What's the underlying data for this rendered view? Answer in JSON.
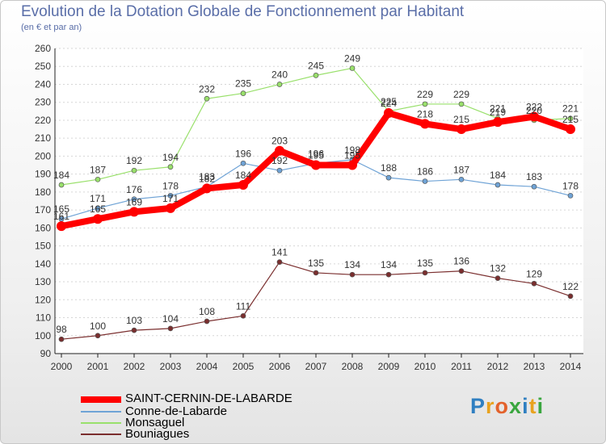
{
  "header": {
    "title": "Evolution de la Dotation Globale de Fonctionnement par Habitant",
    "subtitle": "(en € et par an)"
  },
  "chart_data": {
    "type": "line",
    "title": "Evolution de la Dotation Globale de Fonctionnement par Habitant",
    "subtitle": "(en € et par an)",
    "xlabel": "",
    "ylabel": "",
    "ylim": [
      90,
      260
    ],
    "y_ticks": [
      90,
      100,
      110,
      120,
      130,
      140,
      150,
      160,
      170,
      180,
      190,
      200,
      210,
      220,
      230,
      240,
      250,
      260
    ],
    "grid": "horizontal",
    "categories": [
      "2000",
      "2001",
      "2002",
      "2003",
      "2004",
      "2005",
      "2006",
      "2007",
      "2008",
      "2009",
      "2010",
      "2011",
      "2012",
      "2013",
      "2014"
    ],
    "series": [
      {
        "name": "SAINT-CERNIN-DE-LABARDE",
        "color": "#ff0000",
        "values": [
          161,
          165,
          169,
          171,
          182,
          184,
          203,
          195,
          195,
          224,
          218,
          215,
          219,
          222,
          215
        ]
      },
      {
        "name": "Conne-de-Labarde",
        "color": "#6fa3d6",
        "values": [
          165,
          171,
          176,
          178,
          183,
          196,
          192,
          196,
          198,
          188,
          186,
          187,
          184,
          183,
          178
        ]
      },
      {
        "name": "Monsaguel",
        "color": "#99e06b",
        "values": [
          184,
          187,
          192,
          194,
          232,
          235,
          240,
          245,
          249,
          225,
          229,
          229,
          221,
          220,
          221
        ]
      },
      {
        "name": "Bouniagues",
        "color": "#7a2e2e",
        "values": [
          98,
          100,
          103,
          104,
          108,
          111,
          141,
          135,
          134,
          134,
          135,
          136,
          132,
          129,
          122
        ]
      }
    ],
    "legend_position": "bottom-left"
  },
  "legend": [
    {
      "label": "SAINT-CERNIN-DE-LABARDE",
      "color": "#ff0000"
    },
    {
      "label": "Conne-de-Labarde",
      "color": "#6fa3d6"
    },
    {
      "label": "Monsaguel",
      "color": "#99e06b"
    },
    {
      "label": "Bouniagues",
      "color": "#7a2e2e"
    }
  ],
  "logo": {
    "letters": [
      "P",
      "r",
      "o",
      "x",
      "i",
      "t",
      "i"
    ]
  }
}
